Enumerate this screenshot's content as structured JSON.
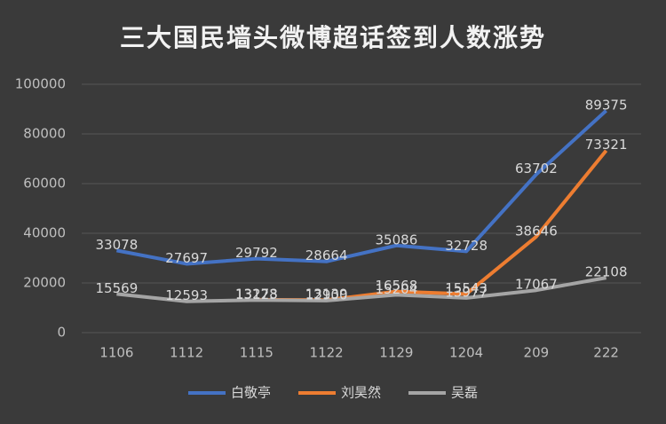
{
  "chart_data": {
    "type": "line",
    "title": "三大国民墙头微博超话签到人数涨势",
    "categories": [
      "1106",
      "1112",
      "1115",
      "1122",
      "1129",
      "1204",
      "209",
      "222"
    ],
    "series": [
      {
        "name": "白敬亭",
        "color": "#4472c4",
        "values": [
          33078,
          27697,
          29792,
          28664,
          35086,
          32728,
          63702,
          89375
        ]
      },
      {
        "name": "刘昊然",
        "color": "#ed7d31",
        "values": [
          null,
          null,
          13278,
          13139,
          16568,
          15543,
          38646,
          73321
        ]
      },
      {
        "name": "吴磊",
        "color": "#a5a5a5",
        "values": [
          15569,
          12593,
          13123,
          12900,
          15204,
          13977,
          17067,
          22108
        ]
      }
    ],
    "ylim": [
      0,
      100000
    ],
    "yticks": [
      0,
      20000,
      40000,
      60000,
      80000,
      100000
    ],
    "grid": true,
    "legend": "bottom"
  }
}
